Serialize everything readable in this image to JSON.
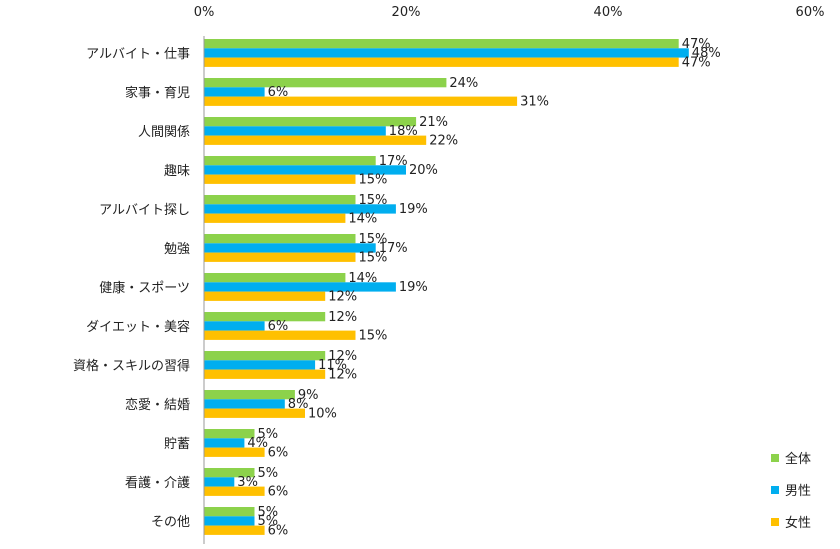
{
  "chart_data": {
    "type": "bar",
    "orientation": "horizontal",
    "categories": [
      "アルバイト・仕事",
      "家事・育児",
      "人間関係",
      "趣味",
      "アルバイト探し",
      "勉強",
      "健康・スポーツ",
      "ダイエット・美容",
      "資格・スキルの習得",
      "恋愛・結婚",
      "貯蓄",
      "看護・介護",
      "その他"
    ],
    "series": [
      {
        "name": "全体",
        "color": "#8cd24b",
        "values": [
          47,
          24,
          21,
          17,
          15,
          15,
          14,
          12,
          12,
          9,
          5,
          5,
          5
        ]
      },
      {
        "name": "男性",
        "color": "#00aeef",
        "values": [
          48,
          6,
          18,
          20,
          19,
          17,
          19,
          6,
          11,
          8,
          4,
          3,
          5
        ]
      },
      {
        "name": "女性",
        "color": "#ffc000",
        "values": [
          47,
          31,
          22,
          15,
          14,
          15,
          12,
          15,
          12,
          10,
          6,
          6,
          6
        ]
      }
    ],
    "xlim": [
      0,
      60
    ],
    "ticks": [
      0,
      20,
      40,
      60
    ],
    "tick_labels": [
      "0%",
      "20%",
      "40%",
      "60%"
    ],
    "value_suffix": "%",
    "legend_position": "bottom-right",
    "grid": false
  }
}
